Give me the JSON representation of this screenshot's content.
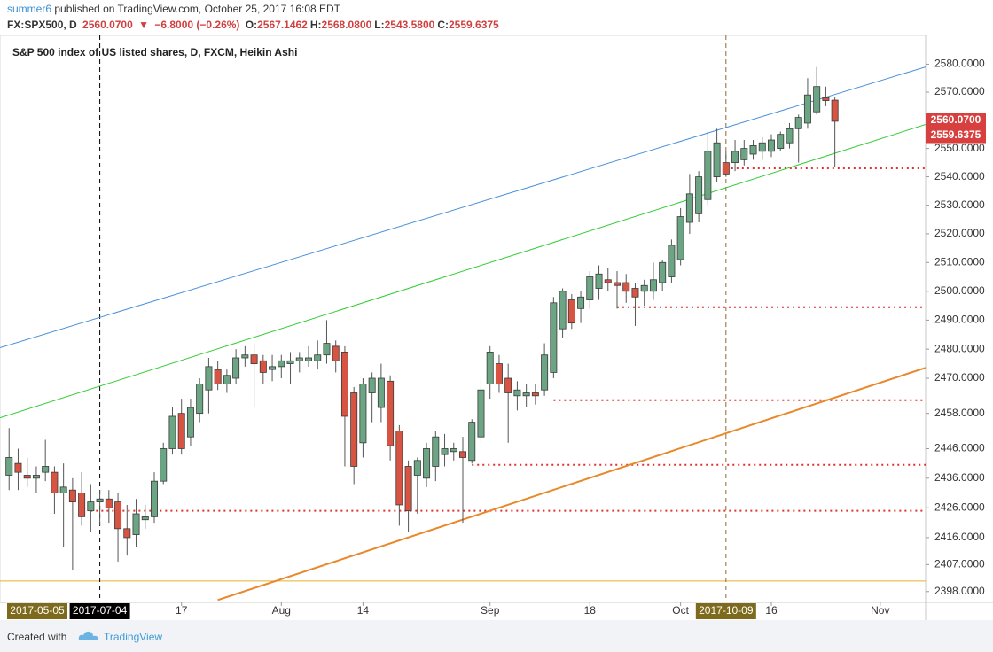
{
  "header": {
    "author": "summer6",
    "published": "published on TradingView.com, October 25, 2017 16:08 EDT",
    "symbol": "FX:SPX500, D",
    "last": "2560.0700",
    "arrow": "▼",
    "change": "−6.8000 (−0.26%)",
    "ohlc": [
      {
        "label": "O:",
        "value": "2567.1462"
      },
      {
        "label": "H:",
        "value": "2568.0800"
      },
      {
        "label": "L:",
        "value": "2543.5800"
      },
      {
        "label": "C:",
        "value": "2559.6375"
      }
    ]
  },
  "chart_data": {
    "type": "candlestick",
    "title": "S&P 500 index of US listed shares, D, FXCM, Heikin Ashi",
    "log_scale": true,
    "grid": false,
    "up_color": "#6ba583",
    "down_color": "#d75442",
    "xlim": [
      "2017-06-19",
      "2017-11-08"
    ],
    "ylim": [
      2394.4,
      2590.3
    ],
    "yticks": [
      {
        "value": 2580,
        "label": "2580.0000"
      },
      {
        "value": 2570,
        "label": "2570.0000"
      },
      {
        "value": 2560,
        "label": "2560.0000"
      },
      {
        "value": 2550,
        "label": "2550.0000"
      },
      {
        "value": 2540,
        "label": "2540.0000"
      },
      {
        "value": 2530,
        "label": "2530.0000"
      },
      {
        "value": 2520,
        "label": "2520.0000"
      },
      {
        "value": 2510,
        "label": "2510.0000"
      },
      {
        "value": 2500,
        "label": "2500.0000"
      },
      {
        "value": 2490,
        "label": "2490.0000"
      },
      {
        "value": 2480,
        "label": "2480.0000"
      },
      {
        "value": 2470,
        "label": "2470.0000"
      },
      {
        "value": 2458,
        "label": "2458.0000"
      },
      {
        "value": 2446,
        "label": "2446.0000"
      },
      {
        "value": 2436,
        "label": "2436.0000"
      },
      {
        "value": 2426,
        "label": "2426.0000"
      },
      {
        "value": 2416,
        "label": "2416.0000"
      },
      {
        "value": 2407,
        "label": "2407.0000"
      },
      {
        "value": 2398,
        "label": "2398.0000"
      }
    ],
    "xticks": [
      {
        "value": "2017-07-17",
        "label": "17"
      },
      {
        "value": "2017-08-01",
        "label": "Aug"
      },
      {
        "value": "2017-08-14",
        "label": "14"
      },
      {
        "value": "2017-09-01",
        "label": "Sep"
      },
      {
        "value": "2017-09-18",
        "label": "18"
      },
      {
        "value": "2017-10-02",
        "label": "Oct"
      },
      {
        "value": "2017-10-16",
        "label": "16"
      },
      {
        "value": "2017-11-01",
        "label": "Nov"
      }
    ],
    "highlighted_dates": [
      {
        "date": "2017-05-05",
        "color": "#7d6a1c"
      },
      {
        "date": "2017-07-04",
        "color": "#000000",
        "line": "#000000"
      },
      {
        "date": "2017-10-09",
        "color": "#7d6a1c",
        "line": "#8b6b3a"
      }
    ],
    "x": [
      "2017-06-20",
      "2017-06-21",
      "2017-06-22",
      "2017-06-23",
      "2017-06-26",
      "2017-06-27",
      "2017-06-28",
      "2017-06-29",
      "2017-06-30",
      "2017-07-03",
      "2017-07-04",
      "2017-07-05",
      "2017-07-06",
      "2017-07-07",
      "2017-07-10",
      "2017-07-11",
      "2017-07-12",
      "2017-07-13",
      "2017-07-14",
      "2017-07-17",
      "2017-07-18",
      "2017-07-19",
      "2017-07-20",
      "2017-07-21",
      "2017-07-24",
      "2017-07-25",
      "2017-07-26",
      "2017-07-27",
      "2017-07-28",
      "2017-07-31",
      "2017-08-01",
      "2017-08-02",
      "2017-08-03",
      "2017-08-04",
      "2017-08-07",
      "2017-08-08",
      "2017-08-09",
      "2017-08-10",
      "2017-08-11",
      "2017-08-14",
      "2017-08-15",
      "2017-08-16",
      "2017-08-17",
      "2017-08-18",
      "2017-08-21",
      "2017-08-22",
      "2017-08-23",
      "2017-08-24",
      "2017-08-25",
      "2017-08-28",
      "2017-08-29",
      "2017-08-30",
      "2017-08-31",
      "2017-09-01",
      "2017-09-04",
      "2017-09-05",
      "2017-09-06",
      "2017-09-07",
      "2017-09-08",
      "2017-09-11",
      "2017-09-12",
      "2017-09-13",
      "2017-09-14",
      "2017-09-15",
      "2017-09-18",
      "2017-09-19",
      "2017-09-20",
      "2017-09-21",
      "2017-09-22",
      "2017-09-25",
      "2017-09-26",
      "2017-09-27",
      "2017-09-28",
      "2017-09-29",
      "2017-10-02",
      "2017-10-03",
      "2017-10-04",
      "2017-10-05",
      "2017-10-06",
      "2017-10-09",
      "2017-10-10",
      "2017-10-11",
      "2017-10-12",
      "2017-10-13",
      "2017-10-16",
      "2017-10-17",
      "2017-10-18",
      "2017-10-19",
      "2017-10-20",
      "2017-10-23",
      "2017-10-24",
      "2017-10-25"
    ],
    "open": [
      2437,
      2441,
      2437,
      2436,
      2438,
      2438,
      2431,
      2432,
      2431,
      2425,
      2428,
      2429,
      2428,
      2419,
      2417,
      2422,
      2423,
      2435,
      2446,
      2458,
      2450,
      2458,
      2466,
      2473,
      2468,
      2470,
      2477,
      2478,
      2476,
      2473,
      2474,
      2475,
      2476,
      2476,
      2476,
      2478,
      2481,
      2479,
      2465,
      2448,
      2465,
      2460,
      2469,
      2452,
      2440,
      2437,
      2436,
      2440,
      2444,
      2445,
      2445,
      2442,
      2450,
      2468,
      2475,
      2470,
      2464,
      2464,
      2465,
      2466,
      2472,
      2487,
      2497,
      2494,
      2497,
      2501,
      2504,
      2503,
      2503,
      2501,
      2500,
      2500,
      2503,
      2505,
      2511,
      2524,
      2527,
      2532,
      2540,
      2545,
      2545,
      2546,
      2548,
      2549,
      2549,
      2550,
      2552,
      2557,
      2559,
      2563,
      2568,
      2567.1462
    ],
    "high": [
      2453,
      2446,
      2443,
      2440,
      2449,
      2440,
      2441,
      2436,
      2438,
      2434,
      2432,
      2432,
      2431,
      2427,
      2429,
      2427,
      2438,
      2448,
      2460,
      2463,
      2463,
      2470,
      2477,
      2476,
      2473,
      2480,
      2481,
      2482,
      2478,
      2478,
      2478,
      2479,
      2479,
      2481,
      2483,
      2490,
      2483,
      2481,
      2467,
      2470,
      2472,
      2475,
      2471,
      2454,
      2442,
      2443,
      2448,
      2452,
      2451,
      2448,
      2450,
      2456,
      2470,
      2481,
      2478,
      2475,
      2469,
      2468,
      2468,
      2482,
      2498,
      2501,
      2499,
      2500,
      2507,
      2509,
      2508,
      2507,
      2506,
      2503,
      2504,
      2510,
      2511,
      2518,
      2529,
      2541,
      2542,
      2556,
      2557,
      2549,
      2553,
      2553,
      2553,
      2554,
      2555,
      2556,
      2559,
      2562,
      2575,
      2579,
      2572,
      2568.08
    ],
    "low": [
      2432,
      2432,
      2433,
      2431,
      2435,
      2424,
      2413,
      2405,
      2420,
      2418,
      2420,
      2421,
      2408,
      2410,
      2413,
      2419,
      2421,
      2434,
      2444,
      2444,
      2447,
      2455,
      2458,
      2466,
      2465,
      2468,
      2474,
      2460,
      2468,
      2469,
      2470,
      2468,
      2472,
      2474,
      2473,
      2475,
      2472,
      2440,
      2434,
      2443,
      2455,
      2455,
      2442,
      2420,
      2418,
      2424,
      2433,
      2435,
      2440,
      2442,
      2421,
      2441,
      2448,
      2463,
      2465,
      2448,
      2459,
      2460,
      2461,
      2464,
      2470,
      2484,
      2487,
      2489,
      2494,
      2497,
      2500,
      2494,
      2496,
      2488,
      2495,
      2497,
      2500,
      2503,
      2509,
      2520,
      2524,
      2530,
      2538,
      2540,
      2542,
      2544,
      2546,
      2546,
      2547,
      2549,
      2550,
      2545,
      2557,
      2562,
      2565,
      2543.58
    ],
    "close": [
      2443,
      2438,
      2436,
      2437,
      2440,
      2431,
      2433,
      2428,
      2423,
      2428,
      2429,
      2426,
      2419,
      2416,
      2424,
      2423,
      2435,
      2446,
      2457,
      2446,
      2460,
      2468,
      2474,
      2468,
      2471,
      2477,
      2478,
      2475,
      2472,
      2474,
      2476,
      2476,
      2477,
      2477,
      2478,
      2482,
      2476,
      2457,
      2440,
      2468,
      2470,
      2470,
      2447,
      2427,
      2425,
      2442,
      2446,
      2450,
      2446,
      2446,
      2443,
      2455,
      2466,
      2479,
      2468,
      2465,
      2466,
      2465,
      2464,
      2478,
      2496,
      2500,
      2489,
      2498,
      2505,
      2506,
      2503,
      2502,
      2500,
      2498,
      2502,
      2504,
      2510,
      2516,
      2526,
      2534,
      2540,
      2549,
      2552,
      2541,
      2549,
      2550,
      2551,
      2552,
      2553,
      2555,
      2557,
      2561,
      2569,
      2572,
      2567,
      2559.6375
    ],
    "trendlines": [
      {
        "color": "#4a90d9",
        "points": [
          {
            "x": "2017-06-19",
            "y": 2480.5
          },
          {
            "x": "2017-11-08",
            "y": 2579
          }
        ]
      },
      {
        "color": "#33cc33",
        "points": [
          {
            "x": "2017-06-19",
            "y": 2456.5
          },
          {
            "x": "2017-11-08",
            "y": 2558.5
          }
        ]
      },
      {
        "color": "#e8882a",
        "points": [
          {
            "x": "2017-07-21",
            "y": 2395.2
          },
          {
            "x": "2017-11-08",
            "y": 2473.6
          }
        ]
      }
    ],
    "levels": [
      {
        "from": "2017-10-09",
        "price": 2543,
        "color": "#e03030"
      },
      {
        "from": "2017-09-21",
        "price": 2494.5,
        "color": "#e03030"
      },
      {
        "from": "2017-09-12",
        "price": 2462.5,
        "color": "#e03030"
      },
      {
        "from": "2017-08-30",
        "price": 2440.5,
        "color": "#e03030"
      },
      {
        "from": "2017-07-03",
        "price": 2425,
        "color": "#e03030"
      },
      {
        "from": "2017-06-19",
        "price": 2401.5,
        "color": "#e2b12c",
        "solid": true
      }
    ],
    "price_labels": [
      {
        "value": 2560.07,
        "label": "2560.0700",
        "color": "#d84040"
      },
      {
        "value": 2559.6375,
        "label": "2559.6375",
        "color": "#d84040"
      }
    ]
  },
  "footer": {
    "created": "Created with",
    "brand": "TradingView"
  }
}
